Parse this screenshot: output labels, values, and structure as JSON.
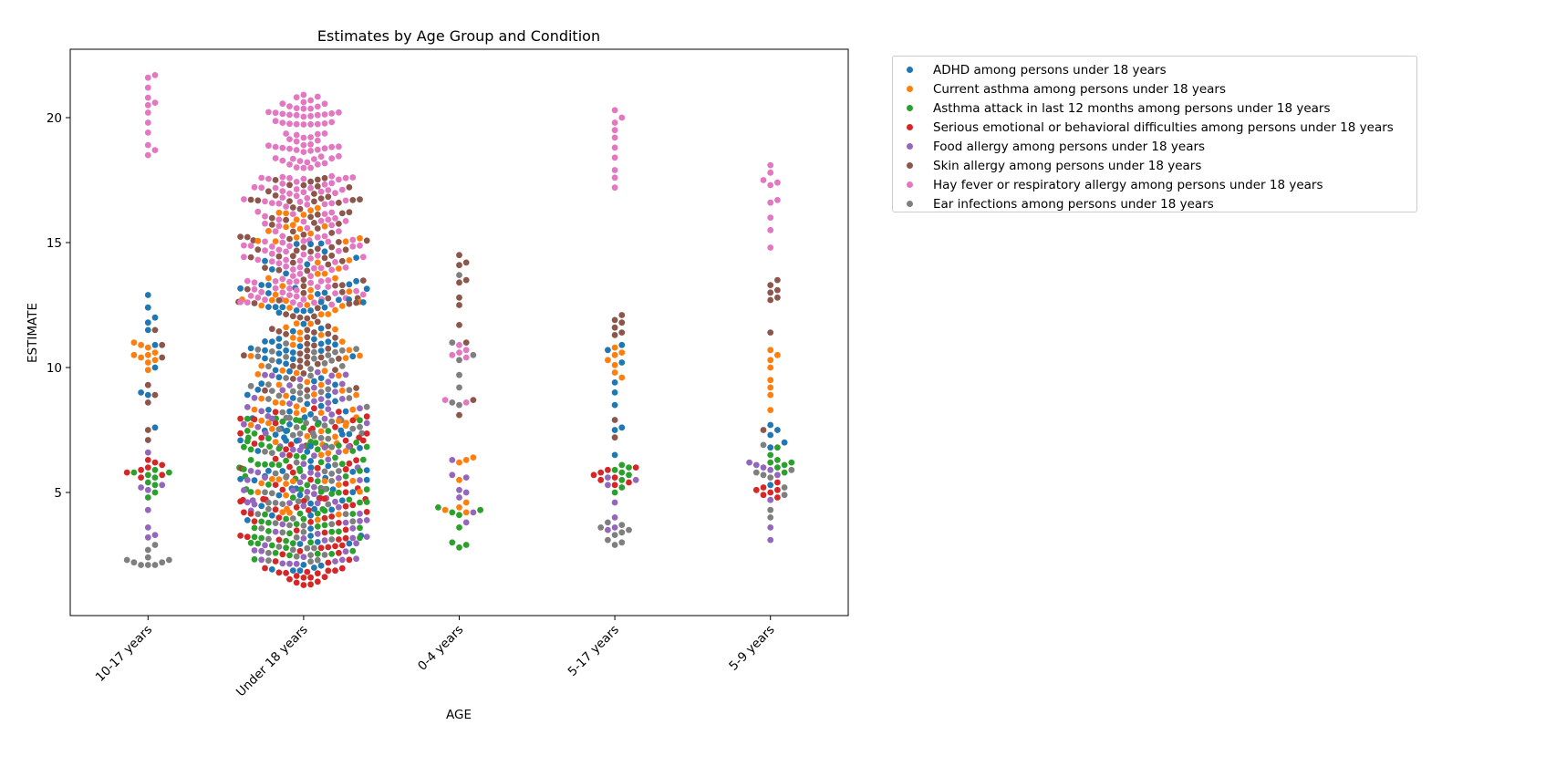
{
  "chart_data": {
    "type": "swarm",
    "title": "Estimates by Age Group and Condition",
    "xlabel": "AGE",
    "ylabel": "ESTIMATE",
    "ylim": [
      0.5,
      23.1
    ],
    "yticks": [
      5,
      10,
      15,
      20
    ],
    "categories": [
      "10-17 years",
      "Under 18 years",
      "0-4 years",
      "5-17 years",
      "5-9 years"
    ],
    "legend_position": "outside-top-right",
    "grid": false,
    "series": [
      {
        "name": "ADHD among persons under 18 years",
        "color": "#1f77b4",
        "groups": {
          "10-17 years": [
            12.9,
            12.4,
            12.0,
            11.8,
            11.5,
            10.9,
            10.0,
            9.0,
            8.9,
            7.6
          ],
          "Under 18 years": {
            "range": [
              1.8,
              15.0
            ],
            "count": 130
          },
          "0-4 years": [],
          "5-17 years": [
            10.9,
            10.7,
            10.2,
            9.4,
            9.0,
            8.5,
            7.6,
            7.5,
            6.5
          ],
          "5-9 years": [
            7.7,
            7.5,
            7.3,
            7.0,
            6.8,
            5.3
          ]
        }
      },
      {
        "name": "Current asthma among persons under 18 years",
        "color": "#ff7f0e",
        "groups": {
          "10-17 years": [
            11.0,
            10.9,
            10.8,
            10.6,
            10.5,
            10.5,
            10.4,
            10.3,
            10.2,
            9.9
          ],
          "Under 18 years": {
            "range": [
              3.8,
              16.5
            ],
            "count": 110
          },
          "0-4 years": [
            6.4,
            6.3,
            6.2,
            5.5,
            4.6,
            4.4,
            4.3,
            4.2
          ],
          "5-17 years": [
            10.8,
            10.6,
            10.5,
            10.3,
            10.1,
            9.8,
            9.6
          ],
          "5-9 years": [
            10.7,
            10.5,
            10.3,
            10.0,
            9.5,
            9.2,
            8.9,
            8.3
          ]
        }
      },
      {
        "name": "Asthma attack in last 12 months among persons under 18 years",
        "color": "#2ca02c",
        "groups": {
          "10-17 years": [
            5.9,
            5.8,
            5.8,
            5.7,
            5.6,
            5.4,
            5.3,
            5.0,
            4.8
          ],
          "Under 18 years": {
            "range": [
              2.3,
              8.0
            ],
            "count": 100
          },
          "0-4 years": [
            4.4,
            4.3,
            4.2,
            4.1,
            3.6,
            3.0,
            2.9,
            2.8
          ],
          "5-17 years": [
            6.1,
            6.0,
            5.9,
            5.8,
            5.7,
            5.5,
            5.2,
            5.0
          ],
          "5-9 years": [
            6.8,
            6.5,
            6.3,
            6.2,
            6.2,
            6.1,
            6.0,
            5.8
          ]
        }
      },
      {
        "name": "Serious emotional or behavioral difficulties among persons under 18 years",
        "color": "#d62728",
        "groups": {
          "10-17 years": [
            6.3,
            6.2,
            6.1,
            6.0,
            5.9,
            5.8,
            5.7,
            5.6
          ],
          "Under 18 years": {
            "range": [
              1.2,
              8.5
            ],
            "count": 95
          },
          "0-4 years": [],
          "5-17 years": [
            6.0,
            5.9,
            5.8,
            5.7,
            5.6,
            5.5,
            5.4,
            5.3
          ],
          "5-9 years": [
            5.4,
            5.2,
            5.1,
            5.1,
            5.0,
            4.9,
            4.8
          ]
        }
      },
      {
        "name": "Food allergy among persons under 18 years",
        "color": "#9467bd",
        "groups": {
          "10-17 years": [
            6.6,
            5.3,
            5.2,
            5.1,
            4.3,
            3.6,
            3.3,
            3.2
          ],
          "Under 18 years": {
            "range": [
              2.1,
              10.0
            ],
            "count": 95
          },
          "0-4 years": [
            6.3,
            5.7,
            5.6,
            5.1,
            5.0,
            4.8,
            4.2,
            3.8
          ],
          "5-17 years": [
            5.6,
            5.5,
            5.3,
            4.6,
            4.0,
            3.6,
            3.5
          ],
          "5-9 years": [
            6.2,
            6.1,
            6.0,
            5.9,
            5.7,
            4.7,
            3.6,
            3.1
          ]
        }
      },
      {
        "name": "Skin allergy among persons under 18 years",
        "color": "#8c564b",
        "groups": {
          "10-17 years": [
            11.5,
            10.9,
            10.4,
            9.3,
            8.9,
            8.6,
            7.5,
            7.1
          ],
          "Under 18 years": {
            "range": [
              9.0,
              17.6
            ],
            "count": 110
          },
          "0-4 years": [
            14.5,
            14.2,
            14.1,
            13.5,
            13.4,
            12.8,
            12.5,
            11.7,
            11.0,
            8.7,
            8.1
          ],
          "5-17 years": [
            12.1,
            11.9,
            11.8,
            11.6,
            11.4,
            11.3,
            7.9,
            7.2
          ],
          "5-9 years": [
            13.5,
            13.3,
            13.1,
            13.0,
            12.8,
            12.7,
            11.4,
            7.5
          ]
        }
      },
      {
        "name": "Hay fever or respiratory allergy among persons under 18 years",
        "color": "#e377c2",
        "groups": {
          "10-17 years": [
            21.7,
            21.6,
            21.2,
            20.8,
            20.6,
            20.5,
            20.2,
            19.8,
            19.4,
            18.9,
            18.7,
            18.5
          ],
          "Under 18 years": {
            "range": [
              12.5,
              21.1
            ],
            "count": 200
          },
          "0-4 years": [
            10.9,
            10.7,
            10.6,
            10.5,
            10.4,
            8.7,
            8.6
          ],
          "5-17 years": [
            20.3,
            20.0,
            19.8,
            19.5,
            19.2,
            18.8,
            18.4,
            17.9,
            17.6,
            17.2
          ],
          "5-9 years": [
            18.1,
            17.8,
            17.5,
            17.4,
            17.3,
            16.7,
            16.6,
            16.0,
            15.5,
            14.8
          ]
        }
      },
      {
        "name": "Ear infections among persons under 18 years",
        "color": "#7f7f7f",
        "groups": {
          "10-17 years": [
            2.9,
            2.7,
            2.4,
            2.3,
            2.3,
            2.2,
            2.2,
            2.1,
            2.1,
            2.1
          ],
          "Under 18 years": {
            "range": [
              2.1,
              11.0
            ],
            "count": 100
          },
          "0-4 years": [
            13.7,
            11.0,
            10.5,
            10.3,
            9.7,
            9.2,
            8.6,
            8.5
          ],
          "5-17 years": [
            3.8,
            3.7,
            3.6,
            3.5,
            3.4,
            3.3,
            3.1,
            3.0,
            2.9
          ],
          "5-9 years": [
            6.9,
            5.9,
            5.8,
            5.7,
            5.6,
            5.2,
            4.9,
            4.3,
            4.0
          ]
        }
      }
    ]
  }
}
